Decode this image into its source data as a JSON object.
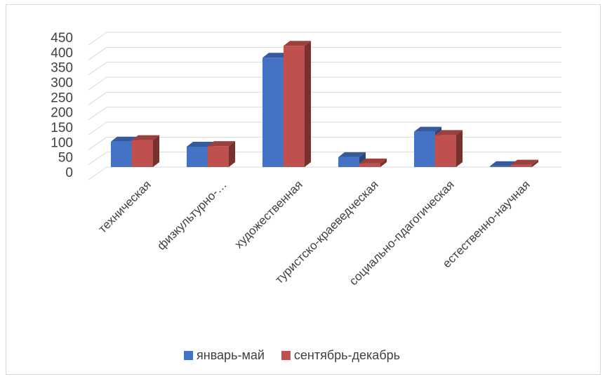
{
  "chart_data": {
    "type": "bar",
    "categories": [
      "техническая",
      "физкультурно-…",
      "художественная",
      "туристско-краеведческая",
      "социально-пдагогическая",
      "естественно-научная"
    ],
    "series": [
      {
        "name": "январь-май",
        "values": [
          85,
          68,
          365,
          33,
          118,
          3
        ],
        "color": "#4472C4"
      },
      {
        "name": "сентябрь-декабрь",
        "values": [
          90,
          70,
          405,
          12,
          107,
          8
        ],
        "color": "#C0504D"
      }
    ],
    "y_ticks": [
      "0",
      "50",
      "100",
      "150",
      "200",
      "250",
      "300",
      "350",
      "400",
      "450"
    ],
    "ylim": [
      0,
      450
    ],
    "grid": true,
    "legend_position": "bottom"
  }
}
